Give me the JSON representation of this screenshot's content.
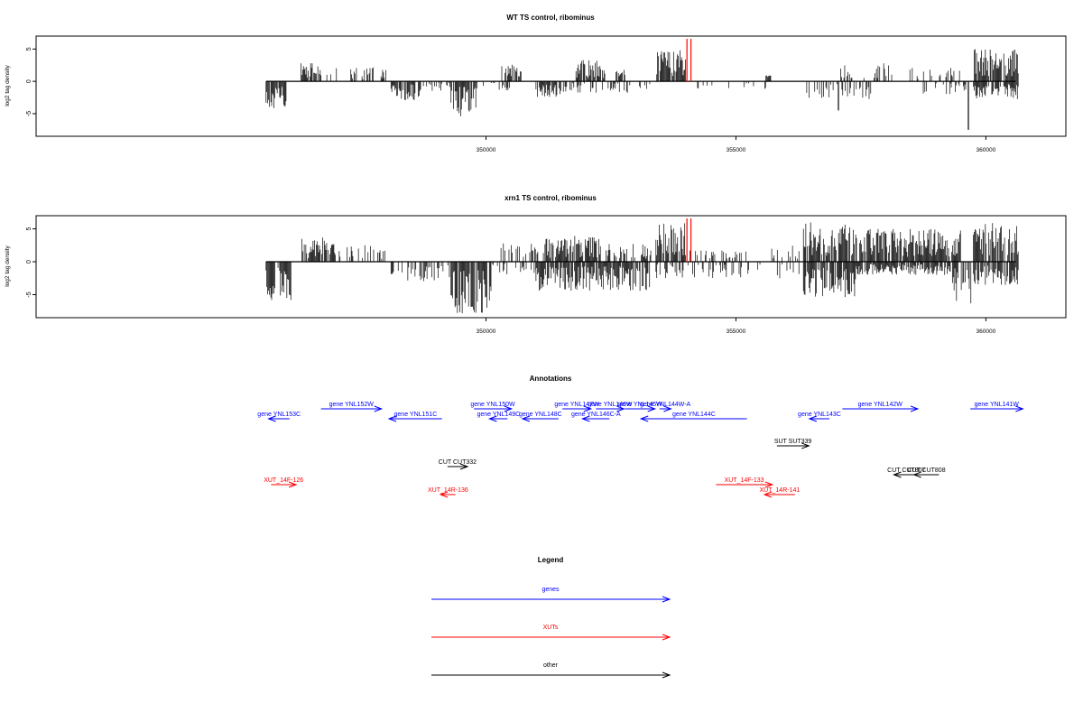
{
  "chart_data": [
    {
      "type": "bar",
      "title": "WT TS control, ribominus",
      "ylabel": "log2 tag density",
      "xlim": [
        341000,
        361600
      ],
      "ylim": [
        -8.5,
        7
      ],
      "x_ticks": [
        350000,
        355000,
        360000
      ],
      "x_tick_labels": [
        "350000",
        "355000",
        "360000"
      ],
      "y_ticks": [
        -5,
        0,
        5
      ],
      "y_tick_labels": [
        "-5",
        "0",
        "5"
      ],
      "x_range": [
        345600,
        360600
      ],
      "plus_clusters": [
        {
          "start": 346300,
          "end": 346700,
          "amp": 3.0
        },
        {
          "start": 346800,
          "end": 347800,
          "amp": 2.2,
          "density": 0.25
        },
        {
          "start": 347900,
          "end": 348000,
          "amp": 2.4
        },
        {
          "start": 350300,
          "end": 350700,
          "amp": 2.6
        },
        {
          "start": 351800,
          "end": 352400,
          "amp": 3.4
        },
        {
          "start": 352600,
          "end": 352800,
          "amp": 1.8
        },
        {
          "start": 353400,
          "end": 354000,
          "amp": 5.0
        },
        {
          "start": 355600,
          "end": 355700,
          "amp": 1.0
        },
        {
          "start": 357000,
          "end": 357600,
          "amp": 2.6,
          "density": 0.3
        },
        {
          "start": 357700,
          "end": 358200,
          "amp": 2.8,
          "density": 0.3
        },
        {
          "start": 358400,
          "end": 359500,
          "amp": 2.4,
          "density": 0.3
        },
        {
          "start": 359750,
          "end": 360650,
          "amp": 5.0
        }
      ],
      "minus_clusters": [
        {
          "start": 345600,
          "end": 346000,
          "amp": 4.2
        },
        {
          "start": 348100,
          "end": 348700,
          "amp": 3.0
        },
        {
          "start": 348700,
          "end": 349300,
          "amp": 1.5,
          "density": 0.3
        },
        {
          "start": 349300,
          "end": 349800,
          "amp": 5.6
        },
        {
          "start": 349800,
          "end": 350500,
          "amp": 1.5,
          "density": 0.3
        },
        {
          "start": 351000,
          "end": 351500,
          "amp": 2.5
        },
        {
          "start": 351500,
          "end": 353300,
          "amp": 1.8,
          "density": 0.35
        },
        {
          "start": 354200,
          "end": 355600,
          "amp": 1.2,
          "density": 0.15
        },
        {
          "start": 356400,
          "end": 357700,
          "amp": 2.8,
          "density": 0.3
        },
        {
          "start": 358700,
          "end": 359600,
          "amp": 2.0,
          "density": 0.3
        },
        {
          "start": 359750,
          "end": 360650,
          "amp": 2.8
        }
      ],
      "spikes": [
        {
          "x": 357050,
          "value": -4.5
        },
        {
          "x": 359650,
          "value": -7.5
        }
      ],
      "markers": [
        354020,
        354100
      ]
    },
    {
      "type": "bar",
      "title": "xrn1 TS control, ribominus",
      "ylabel": "log2 tag density",
      "xlim": [
        341000,
        361600
      ],
      "ylim": [
        -8.5,
        7
      ],
      "x_ticks": [
        350000,
        355000,
        360000
      ],
      "x_tick_labels": [
        "350000",
        "355000",
        "360000"
      ],
      "y_ticks": [
        -5,
        0,
        5
      ],
      "y_tick_labels": [
        "-5",
        "0",
        "5"
      ],
      "x_range": [
        345600,
        360600
      ],
      "plus_clusters": [
        {
          "start": 346300,
          "end": 347000,
          "amp": 3.8
        },
        {
          "start": 347000,
          "end": 348000,
          "amp": 2.6,
          "density": 0.4
        },
        {
          "start": 350300,
          "end": 351200,
          "amp": 2.8,
          "density": 0.4
        },
        {
          "start": 351200,
          "end": 352300,
          "amp": 4.0
        },
        {
          "start": 352400,
          "end": 353300,
          "amp": 3.0,
          "density": 0.5
        },
        {
          "start": 353400,
          "end": 354000,
          "amp": 6.0
        },
        {
          "start": 354000,
          "end": 355200,
          "amp": 2.0,
          "density": 0.3
        },
        {
          "start": 355700,
          "end": 356300,
          "amp": 2.5,
          "density": 0.3
        },
        {
          "start": 356350,
          "end": 357300,
          "amp": 6.0
        },
        {
          "start": 357300,
          "end": 359500,
          "amp": 5.0
        },
        {
          "start": 359750,
          "end": 360650,
          "amp": 6.0
        }
      ],
      "minus_clusters": [
        {
          "start": 345600,
          "end": 346100,
          "amp": 6.0
        },
        {
          "start": 348100,
          "end": 349300,
          "amp": 3.0,
          "density": 0.4
        },
        {
          "start": 349300,
          "end": 350100,
          "amp": 8.0
        },
        {
          "start": 350100,
          "end": 351000,
          "amp": 2.0,
          "density": 0.3
        },
        {
          "start": 351000,
          "end": 353300,
          "amp": 4.5
        },
        {
          "start": 353400,
          "end": 355500,
          "amp": 2.5,
          "density": 0.4
        },
        {
          "start": 355700,
          "end": 356300,
          "amp": 2.5,
          "density": 0.3
        },
        {
          "start": 356350,
          "end": 357400,
          "amp": 5.5
        },
        {
          "start": 357400,
          "end": 359300,
          "amp": 2.0
        },
        {
          "start": 359300,
          "end": 359700,
          "amp": 6.5,
          "density": 0.4
        },
        {
          "start": 359750,
          "end": 360650,
          "amp": 3.5
        }
      ],
      "spikes": [],
      "markers": [
        354020,
        354100
      ]
    },
    {
      "type": "table",
      "title": "Annotations",
      "xlim": [
        341000,
        361600
      ],
      "features": [
        {
          "label": "gene YNL153C",
          "start": 345650,
          "end": 346070,
          "dir": "-",
          "row": 2,
          "kind": "gene"
        },
        {
          "label": "gene YNL152W",
          "start": 346700,
          "end": 347910,
          "dir": "+",
          "row": 1,
          "kind": "gene"
        },
        {
          "label": "gene YNL151C",
          "start": 348060,
          "end": 349120,
          "dir": "-",
          "row": 2,
          "kind": "gene"
        },
        {
          "label": "gene YNL150W",
          "start": 349760,
          "end": 350510,
          "dir": "+",
          "row": 1,
          "kind": "gene"
        },
        {
          "label": "gene YNL149C",
          "start": 350070,
          "end": 350430,
          "dir": "-",
          "row": 2,
          "kind": "gene"
        },
        {
          "label": "gene YNL148C",
          "start": 350730,
          "end": 351450,
          "dir": "-",
          "row": 2,
          "kind": "gene"
        },
        {
          "label": "gene YNL147W",
          "start": 351530,
          "end": 352100,
          "dir": "+",
          "row": 1,
          "kind": "gene"
        },
        {
          "label": "gene YNL146W",
          "start": 352200,
          "end": 352760,
          "dir": "+",
          "row": 1,
          "kind": "gene"
        },
        {
          "label": "gene YNL146C-A",
          "start": 351930,
          "end": 352470,
          "dir": "-",
          "row": 2,
          "kind": "gene"
        },
        {
          "label": "gene YNL145W",
          "start": 352780,
          "end": 353380,
          "dir": "+",
          "row": 1,
          "kind": "gene"
        },
        {
          "label": "gene YNL144W-A",
          "start": 353470,
          "end": 353700,
          "dir": "+",
          "row": 1,
          "kind": "gene"
        },
        {
          "label": "gene YNL144C",
          "start": 353100,
          "end": 355220,
          "dir": "-",
          "row": 2,
          "kind": "gene"
        },
        {
          "label": "gene YNL143C",
          "start": 356470,
          "end": 356870,
          "dir": "-",
          "row": 2,
          "kind": "gene"
        },
        {
          "label": "gene YNL142W",
          "start": 357130,
          "end": 358640,
          "dir": "+",
          "row": 1,
          "kind": "gene"
        },
        {
          "label": "gene YNL141W",
          "start": 359690,
          "end": 360740,
          "dir": "+",
          "row": 1,
          "kind": "gene"
        },
        {
          "label": "SUT SUT339",
          "start": 355820,
          "end": 356460,
          "dir": "+",
          "row": 3,
          "kind": "other"
        },
        {
          "label": "CUT CUT332",
          "start": 349230,
          "end": 349630,
          "dir": "+",
          "row": 4,
          "kind": "other"
        },
        {
          "label": "CUT CUT808",
          "start": 358560,
          "end": 359060,
          "dir": "-",
          "row": 5,
          "kind": "other"
        },
        {
          "label": "CUT CUT807",
          "start": 358160,
          "end": 358660,
          "dir": "-",
          "row": 5,
          "kind": "other"
        },
        {
          "label": "XUT_14F-126",
          "start": 345700,
          "end": 346200,
          "dir": "+",
          "row": 6,
          "kind": "xut"
        },
        {
          "label": "XUT_14R-136",
          "start": 349090,
          "end": 349390,
          "dir": "-",
          "row": 7,
          "kind": "xut"
        },
        {
          "label": "XUT_14F-133",
          "start": 354600,
          "end": 355730,
          "dir": "+",
          "row": 6,
          "kind": "xut"
        },
        {
          "label": "XUT_14R-141",
          "start": 355570,
          "end": 356180,
          "dir": "-",
          "row": 7,
          "kind": "xut"
        }
      ]
    },
    {
      "type": "table",
      "title": "Legend",
      "entries": [
        {
          "label": "genes",
          "kind": "gene"
        },
        {
          "label": "XUTs",
          "kind": "xut"
        },
        {
          "label": "other",
          "kind": "other"
        }
      ]
    }
  ],
  "colors": {
    "gene": "#0000ff",
    "xut": "#ff0000",
    "other": "#000000",
    "marker": "#ff0000",
    "bar": "#000000",
    "axis": "#000000"
  }
}
